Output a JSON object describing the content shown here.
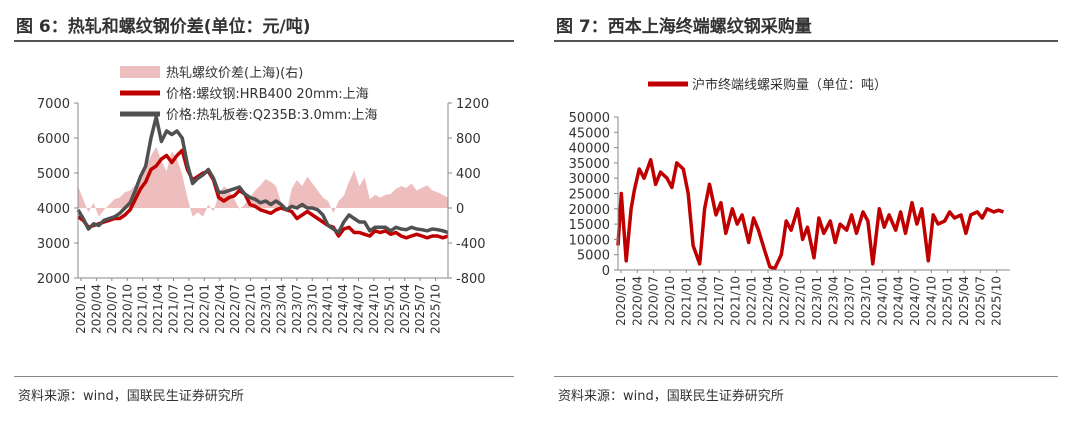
{
  "colors": {
    "red": "#c00000",
    "grey": "#505050",
    "pink": "#eebebe",
    "axis": "#888888"
  },
  "source_text": "资料来源：wind，国联民生证券研究所",
  "chart_data": [
    {
      "id": "fig6",
      "type": "line",
      "title": "图 6：热轧和螺纹钢价差(单位：元/吨)",
      "legend": [
        "热轧螺纹价差(上海)(右)",
        "价格:螺纹钢:HRB400 20mm:上海",
        "价格:热轧板卷:Q235B:3.0mm:上海"
      ],
      "legend_placement": "top",
      "ylim_left": [
        2000,
        7000
      ],
      "yticks_left": [
        "7000",
        "6000",
        "5000",
        "4000",
        "3000",
        "2000"
      ],
      "ylim_right": [
        -800,
        1200
      ],
      "yticks_right": [
        "1200",
        "800",
        "400",
        "0",
        "-400",
        "-800"
      ],
      "x_ticks": [
        "2020/01",
        "2020/04",
        "2020/07",
        "2020/10",
        "2021/01",
        "2021/04",
        "2021/07",
        "2021/10",
        "2022/01",
        "2022/04",
        "2022/07",
        "2022/10",
        "2023/01",
        "2023/04",
        "2023/07",
        "2023/10",
        "2024/01",
        "2024/04",
        "2024/07",
        "2024/10",
        "2025/01",
        "2025/04",
        "2025/07",
        "2025/10"
      ],
      "grid": false,
      "series": [
        {
          "name": "热轧螺纹价差(上海)(右)",
          "type": "area",
          "axis": "right",
          "x": [
            0,
            1,
            2,
            3,
            4,
            5,
            6,
            7,
            8,
            9,
            10,
            11,
            12,
            13,
            14,
            15,
            16,
            17,
            18,
            19,
            20,
            21,
            22,
            23,
            24,
            25,
            26,
            27,
            28,
            29,
            30,
            31,
            32,
            33,
            34,
            35,
            36,
            37,
            38,
            39,
            40,
            41,
            42,
            43,
            44,
            45,
            46,
            47,
            48,
            49,
            50,
            51,
            52,
            53,
            54,
            55,
            56,
            57,
            58,
            59,
            60,
            61,
            62,
            63,
            64,
            65,
            66,
            67,
            68,
            69,
            70,
            71
          ],
          "values": [
            250,
            100,
            -50,
            60,
            -100,
            -20,
            40,
            100,
            120,
            180,
            200,
            260,
            380,
            460,
            600,
            700,
            540,
            420,
            650,
            560,
            380,
            120,
            -100,
            -50,
            -100,
            40,
            -40,
            150,
            250,
            200,
            100,
            -10,
            40,
            120,
            200,
            260,
            330,
            300,
            250,
            60,
            -50,
            220,
            320,
            250,
            360,
            280,
            200,
            120,
            80,
            -60,
            80,
            140,
            300,
            430,
            250,
            350,
            100,
            150,
            120,
            150,
            160,
            220,
            250,
            230,
            280,
            200,
            230,
            260,
            200,
            180,
            150,
            120
          ]
        },
        {
          "name": "价格:螺纹钢:HRB400 20mm:上海",
          "type": "line",
          "axis": "left",
          "x": [
            0,
            1,
            2,
            3,
            4,
            5,
            6,
            7,
            8,
            9,
            10,
            11,
            12,
            13,
            14,
            15,
            16,
            17,
            18,
            19,
            20,
            21,
            22,
            23,
            24,
            25,
            26,
            27,
            28,
            29,
            30,
            31,
            32,
            33,
            34,
            35,
            36,
            37,
            38,
            39,
            40,
            41,
            42,
            43,
            44,
            45,
            46,
            47,
            48,
            49,
            50,
            51,
            52,
            53,
            54,
            55,
            56,
            57,
            58,
            59,
            60,
            61,
            62,
            63,
            64,
            65,
            66,
            67,
            68,
            69,
            70,
            71
          ],
          "values": [
            3750,
            3650,
            3450,
            3500,
            3550,
            3600,
            3650,
            3700,
            3700,
            3800,
            3950,
            4250,
            4550,
            4750,
            5100,
            5200,
            5400,
            5500,
            5300,
            5500,
            5650,
            5100,
            4800,
            4900,
            5000,
            5050,
            4800,
            4300,
            4200,
            4300,
            4350,
            4500,
            4400,
            4100,
            4050,
            3950,
            3900,
            3850,
            3950,
            4000,
            3950,
            3900,
            3700,
            3800,
            3900,
            3800,
            3700,
            3600,
            3500,
            3450,
            3200,
            3400,
            3450,
            3300,
            3300,
            3250,
            3200,
            3350,
            3300,
            3350,
            3250,
            3300,
            3200,
            3150,
            3200,
            3250,
            3200,
            3150,
            3200,
            3200,
            3150,
            3200
          ]
        },
        {
          "name": "价格:热轧板卷:Q235B:3.0mm:上海",
          "type": "line",
          "axis": "left",
          "x": [
            0,
            1,
            2,
            3,
            4,
            5,
            6,
            7,
            8,
            9,
            10,
            11,
            12,
            13,
            14,
            15,
            16,
            17,
            18,
            19,
            20,
            21,
            22,
            23,
            24,
            25,
            26,
            27,
            28,
            29,
            30,
            31,
            32,
            33,
            34,
            35,
            36,
            37,
            38,
            39,
            40,
            41,
            42,
            43,
            44,
            45,
            46,
            47,
            48,
            49,
            50,
            51,
            52,
            53,
            54,
            55,
            56,
            57,
            58,
            59,
            60,
            61,
            62,
            63,
            64,
            65,
            66,
            67,
            68,
            69,
            70,
            71
          ],
          "values": [
            3950,
            3700,
            3400,
            3550,
            3500,
            3650,
            3700,
            3750,
            3850,
            4000,
            4150,
            4500,
            4900,
            5200,
            6000,
            6600,
            5900,
            6200,
            6100,
            6200,
            6000,
            5250,
            4700,
            4850,
            4950,
            5100,
            4850,
            4450,
            4450,
            4500,
            4550,
            4600,
            4400,
            4300,
            4250,
            4150,
            4200,
            4100,
            4200,
            4100,
            3950,
            4050,
            4000,
            4100,
            4000,
            4000,
            3950,
            3800,
            3500,
            3400,
            3300,
            3600,
            3800,
            3700,
            3600,
            3600,
            3350,
            3450,
            3450,
            3450,
            3350,
            3450,
            3400,
            3380,
            3450,
            3400,
            3380,
            3350,
            3400,
            3380,
            3350,
            3300
          ]
        }
      ]
    },
    {
      "id": "fig7",
      "type": "line",
      "title": "图 7：西本上海终端螺纹钢采购量",
      "legend": [
        "沪市终端线螺采购量（单位：吨）"
      ],
      "legend_placement": "top",
      "ylim": [
        0,
        50000
      ],
      "yticks": [
        "50000",
        "45000",
        "40000",
        "35000",
        "30000",
        "25000",
        "20000",
        "15000",
        "10000",
        "5000",
        "0"
      ],
      "x_ticks": [
        "2020/01",
        "2020/04",
        "2020/07",
        "2020/10",
        "2021/01",
        "2021/04",
        "2021/07",
        "2021/10",
        "2022/01",
        "2022/04",
        "2022/07",
        "2022/10",
        "2023/01",
        "2023/04",
        "2023/07",
        "2023/10",
        "2024/01",
        "2024/04",
        "2024/07",
        "2024/10",
        "2025/01",
        "2025/04",
        "2025/07",
        "2025/10"
      ],
      "grid": false,
      "series": [
        {
          "name": "沪市终端线螺采购量（单位：吨）",
          "x": [
            0,
            0.2,
            0.5,
            0.8,
            1,
            1.3,
            1.6,
            2,
            2.3,
            2.6,
            3,
            3.3,
            3.6,
            4,
            4.3,
            4.6,
            5,
            5.3,
            5.6,
            6,
            6.3,
            6.6,
            7,
            7.3,
            7.6,
            8,
            8.3,
            8.6,
            9,
            9.3,
            9.6,
            10,
            10.3,
            10.6,
            11,
            11.3,
            11.6,
            12,
            12.3,
            12.6,
            13,
            13.3,
            13.6,
            14,
            14.3,
            14.6,
            15,
            15.3,
            15.6,
            16,
            16.3,
            16.6,
            17,
            17.3,
            17.6,
            18,
            18.3,
            18.6,
            19,
            19.3,
            19.6,
            20,
            20.3,
            20.6,
            21,
            21.3,
            21.6,
            22,
            22.3,
            22.6,
            23,
            23.3,
            23.6
          ],
          "values": [
            8000,
            25000,
            3000,
            20000,
            26000,
            33000,
            30000,
            36000,
            28000,
            32000,
            30000,
            27000,
            35000,
            33000,
            25000,
            8000,
            2000,
            20000,
            28000,
            18000,
            22000,
            12000,
            20000,
            15000,
            18000,
            9000,
            17000,
            13000,
            6000,
            1000,
            500,
            5000,
            16000,
            13000,
            20000,
            10000,
            14000,
            4000,
            17000,
            12000,
            16000,
            9000,
            15000,
            13000,
            18000,
            12000,
            19000,
            16000,
            2000,
            20000,
            14000,
            18000,
            13000,
            19000,
            12000,
            22000,
            15000,
            20000,
            3000,
            18000,
            15000,
            16000,
            19000,
            17000,
            18000,
            12000,
            18000,
            19000,
            17000,
            20000,
            19000,
            19500,
            19000
          ]
        }
      ]
    }
  ]
}
